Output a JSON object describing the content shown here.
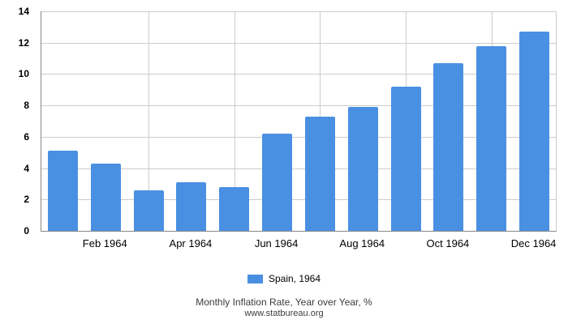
{
  "chart_data": {
    "type": "bar",
    "title": "Monthly Inflation Rate, Year over Year, %",
    "source": "www.statbureau.org",
    "categories": [
      "Jan 1964",
      "Feb 1964",
      "Mar 1964",
      "Apr 1964",
      "May 1964",
      "Jun 1964",
      "Jul 1964",
      "Aug 1964",
      "Sep 1964",
      "Oct 1964",
      "Nov 1964",
      "Dec 1964"
    ],
    "x_axis_labels": [
      "Feb 1964",
      "Apr 1964",
      "Jun 1964",
      "Aug 1964",
      "Oct 1964",
      "Dec 1964"
    ],
    "series": [
      {
        "name": "Spain, 1964",
        "values": [
          5.1,
          4.3,
          2.6,
          3.1,
          2.8,
          6.2,
          7.3,
          7.9,
          9.2,
          10.7,
          11.8,
          12.7
        ]
      }
    ],
    "y_ticks": [
      0,
      2,
      4,
      6,
      8,
      10,
      12,
      14
    ],
    "ylim": [
      0,
      14
    ],
    "grid": true,
    "legend_position": "bottom",
    "colors": {
      "bar": "#4a90e2",
      "gridline": "#cccccc",
      "axis": "#888888",
      "axis_text": "#000000",
      "footer_text": "#3c3c3c"
    }
  }
}
